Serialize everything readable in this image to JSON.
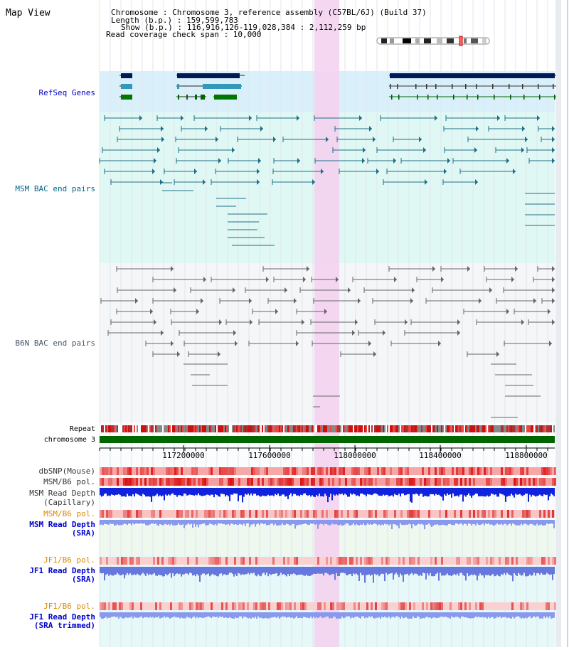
{
  "title": "Map View",
  "header": {
    "lines": [
      "Chromosome     : Chromosome 3, reference assembly (C57BL/6J) (Build 37)",
      "Length (b.p.) : 159,599,783",
      "Show (b.p.) : 116,916,126-119,028,384 : 2,112,259 bp",
      "Read coverage check span : 10,000"
    ]
  },
  "tracks": {
    "refseq": "RefSeq Genes",
    "msm_bac": "MSM BAC end pairs",
    "b6n_bac": "B6N BAC end pairs",
    "repeat": "Repeat",
    "chromosome": "chromosome 3",
    "dbsnp": "dbSNP(Mouse)",
    "msm_b6_pol_1": "MSM/B6 pol.",
    "msm_depth_cap_1": "MSM Read Depth",
    "msm_depth_cap_2": "(Capillary)",
    "msm_b6_pol_2": "MSM/B6 pol.",
    "msm_depth_sra_1": "MSM Read Depth",
    "msm_depth_sra_2": "(SRA)",
    "jf1_b6_pol_1": "JF1/B6 pol.",
    "jf1_depth_sra_1": "JF1 Read Depth",
    "jf1_depth_sra_2": "(SRA)",
    "jf1_b6_pol_2": "JF1/B6 pol.",
    "jf1_depth_trim_1": "JF1 Read Depth",
    "jf1_depth_trim_2": "(SRA trimmed)"
  },
  "axis": {
    "ticks": [
      "117200000",
      "117600000",
      "118000000",
      "118400000",
      "118800000"
    ]
  },
  "colors": {
    "refseq_bg": "#d9f0fa",
    "msm_bg": "#e0f8f4",
    "b6n_bg": "#f4f6f8",
    "highlight": "#f5d0ee",
    "label_blue": "#0000cc",
    "label_teal": "#006688",
    "label_gray": "#445566",
    "label_orange": "#dd8800"
  }
}
